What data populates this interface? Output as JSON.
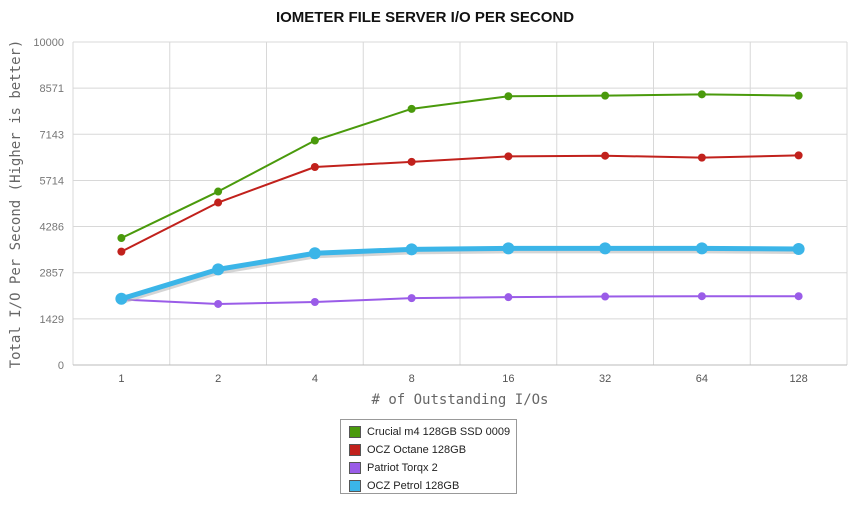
{
  "chart_data": {
    "type": "line",
    "title": "IOMETER FILE SERVER I/O PER SECOND",
    "xlabel": "# of Outstanding I/Os",
    "ylabel": "Total I/O Per Second (Higher is better)",
    "categories": [
      "1",
      "2",
      "4",
      "8",
      "16",
      "32",
      "64",
      "128"
    ],
    "yticks": [
      0,
      1429,
      2857,
      4286,
      5714,
      7143,
      8571,
      10000
    ],
    "ylim": [
      0,
      10000
    ],
    "grid": true,
    "legend_position": "bottom",
    "series": [
      {
        "name": "Crucial m4 128GB SSD 0009",
        "color": "#4a9a0c",
        "values": [
          3930,
          5370,
          6950,
          7930,
          8320,
          8340,
          8380,
          8340
        ]
      },
      {
        "name": "OCZ Octane 128GB",
        "color": "#c1211c",
        "values": [
          3510,
          5030,
          6130,
          6290,
          6460,
          6480,
          6420,
          6490
        ]
      },
      {
        "name": "Patriot Torqx 2",
        "color": "#9a5ce8",
        "values": [
          2030,
          1890,
          1950,
          2070,
          2100,
          2120,
          2130,
          2130
        ]
      },
      {
        "name": "OCZ Petrol 128GB",
        "color": "#3bb5e8",
        "values": [
          2050,
          2960,
          3460,
          3580,
          3610,
          3610,
          3610,
          3590
        ]
      }
    ]
  }
}
